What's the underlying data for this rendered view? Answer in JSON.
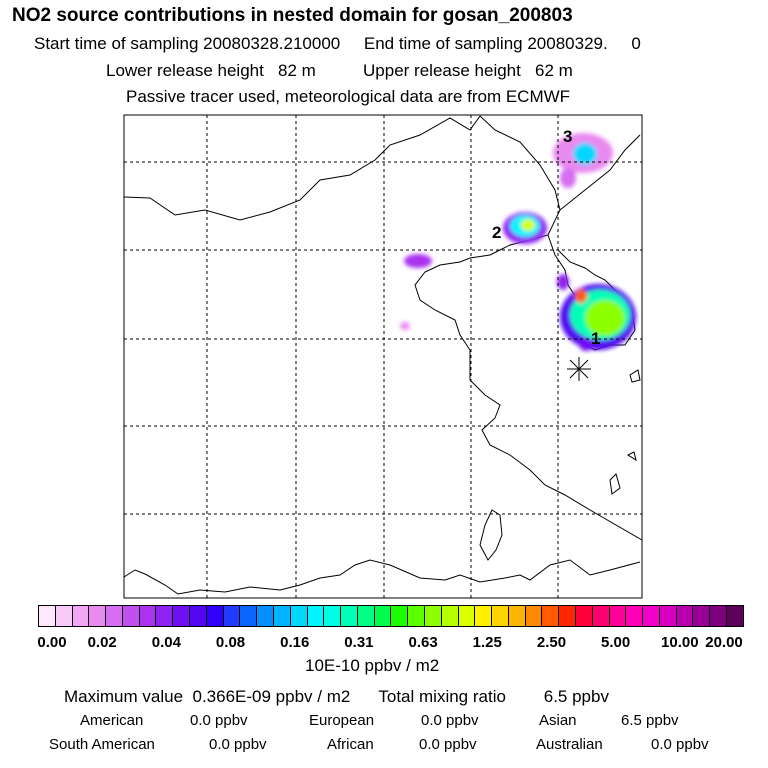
{
  "header": {
    "title": "NO2 source contributions in nested domain for gosan_200803",
    "start_label": "Start time of sampling",
    "start_value": "20080328.210000",
    "end_label": "End time of sampling",
    "end_value": "20080329.     0",
    "lower_label": "Lower release height",
    "lower_value": "82 m",
    "upper_label": "Upper release height",
    "upper_value": "62 m",
    "note": "Passive tracer used, meteorological data are from ECMWF"
  },
  "map": {
    "source_labels": [
      "1",
      "2",
      "3"
    ],
    "release_marker": "asterisk-marker"
  },
  "colorbar": {
    "colors": [
      "#fde8fd",
      "#f8c8f8",
      "#f2a6f6",
      "#e98af0",
      "#d66ef2",
      "#c24ff0",
      "#aa33f0",
      "#8e22f0",
      "#6f10f2",
      "#5207f0",
      "#3000ff",
      "#1f3cff",
      "#0b66ff",
      "#0090ff",
      "#00b4ff",
      "#00d6ff",
      "#00f4ff",
      "#00ffe2",
      "#00ffb6",
      "#00ff84",
      "#00ff4c",
      "#1cff00",
      "#5cff00",
      "#8cff00",
      "#b6ff00",
      "#dcff00",
      "#fff000",
      "#ffd400",
      "#ffb400",
      "#ff8a00",
      "#ff5a00",
      "#ff2600",
      "#ff003a",
      "#ff0070",
      "#ff0098",
      "#ff00b8",
      "#f000c8",
      "#d800c0",
      "#b800b0",
      "#9a0098",
      "#7c007c",
      "#5c005c"
    ],
    "tick_labels": [
      "0.00",
      "0.02",
      "0.04",
      "0.08",
      "0.16",
      "0.31",
      "0.63",
      "1.25",
      "2.50",
      "5.00",
      "10.00",
      "20.00"
    ],
    "unit": "10E-10 ppbv / m2"
  },
  "summary": {
    "max_label": "Maximum value",
    "max_value": "0.366E-09 ppbv / m2",
    "total_label": "Total mixing ratio",
    "total_value": "6.5 ppbv",
    "regions": [
      {
        "name": "American",
        "value": "0.0 ppbv"
      },
      {
        "name": "European",
        "value": "0.0 ppbv"
      },
      {
        "name": "Asian",
        "value": "6.5 ppbv"
      },
      {
        "name": "South American",
        "value": "0.0 ppbv"
      },
      {
        "name": "African",
        "value": "0.0 ppbv"
      },
      {
        "name": "Australian",
        "value": "0.0 ppbv"
      }
    ]
  }
}
